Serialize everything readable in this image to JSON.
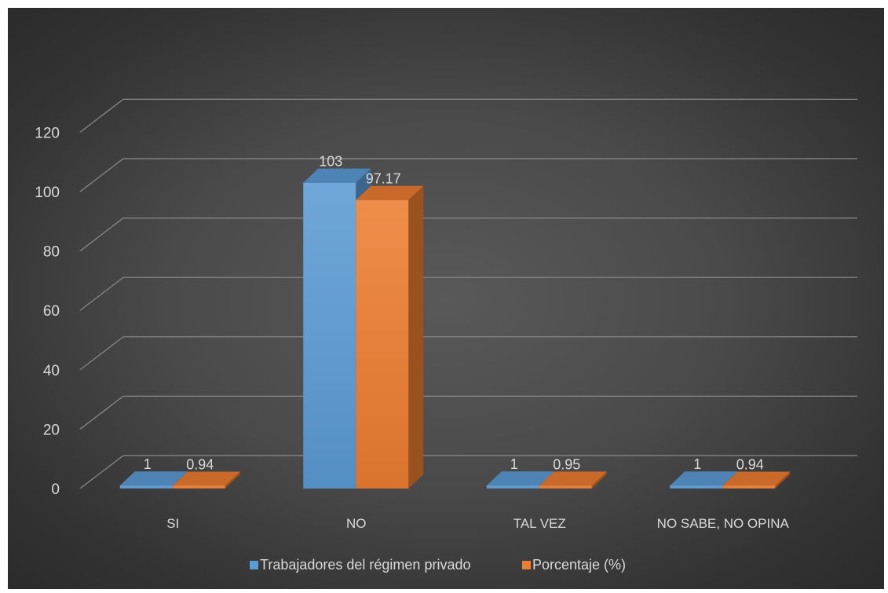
{
  "chart_data": {
    "type": "bar",
    "categories": [
      "SI",
      "NO",
      "TAL VEZ",
      "NO SABE, NO OPINA"
    ],
    "series": [
      {
        "name": "Trabajadores del régimen privado",
        "values": [
          1,
          103,
          1,
          1
        ],
        "color": "#5b9bd5"
      },
      {
        "name": "Porcentaje (%)",
        "values": [
          0.94,
          97.17,
          0.95,
          0.94
        ],
        "color": "#ed7d31"
      }
    ],
    "data_labels": [
      [
        "1",
        "103",
        "1",
        "1"
      ],
      [
        "0.94",
        "97.17",
        "0.95",
        "0.94"
      ]
    ],
    "yticks": [
      "0",
      "20",
      "40",
      "60",
      "80",
      "100",
      "120"
    ],
    "ylim": [
      0,
      120
    ],
    "grid": true,
    "style": "3d-column",
    "legend_position": "bottom",
    "background": "#404040"
  }
}
